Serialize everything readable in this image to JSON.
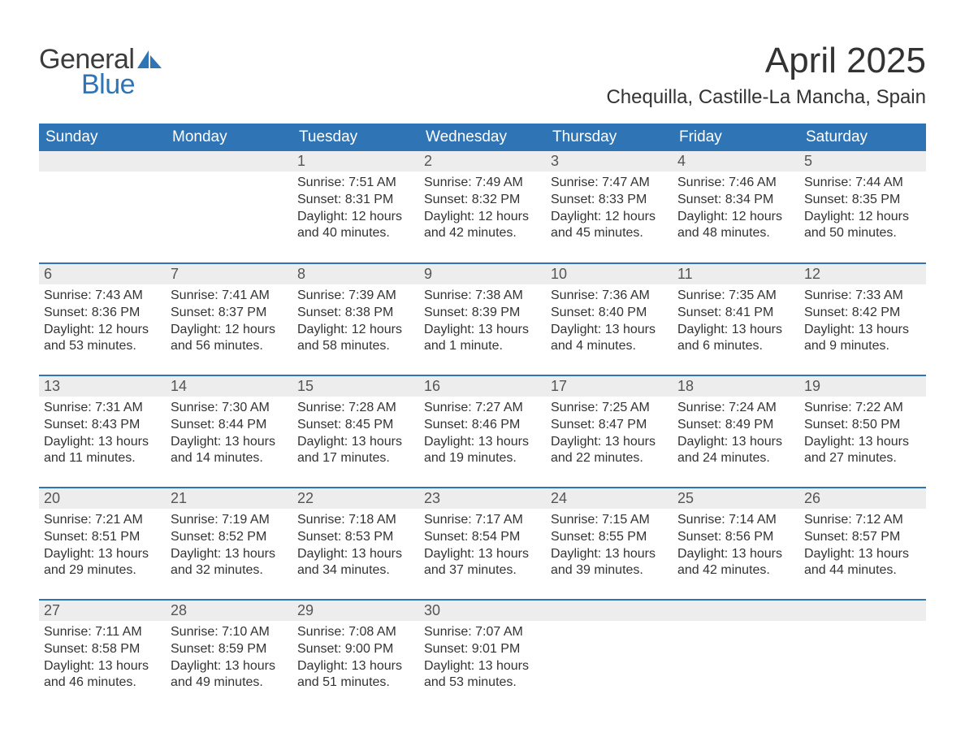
{
  "logo": {
    "text1": "General",
    "text2": "Blue"
  },
  "title": "April 2025",
  "location": "Chequilla, Castille-La Mancha, Spain",
  "colors": {
    "header_bg": "#2f75b5",
    "header_text": "#ffffff",
    "daynum_bg": "#ededed",
    "week_border": "#2f75b5",
    "body_text": "#333333",
    "logo_gray": "#3c3c3c",
    "logo_blue": "#2f75b5"
  },
  "fonts": {
    "title_pt": 44,
    "location_pt": 24,
    "header_pt": 19,
    "daynum_pt": 18,
    "body_pt": 16
  },
  "day_labels": [
    "Sunday",
    "Monday",
    "Tuesday",
    "Wednesday",
    "Thursday",
    "Friday",
    "Saturday"
  ],
  "weeks": [
    [
      {
        "num": "",
        "sunrise": "",
        "sunset": "",
        "daylight1": "",
        "daylight2": ""
      },
      {
        "num": "",
        "sunrise": "",
        "sunset": "",
        "daylight1": "",
        "daylight2": ""
      },
      {
        "num": "1",
        "sunrise": "Sunrise: 7:51 AM",
        "sunset": "Sunset: 8:31 PM",
        "daylight1": "Daylight: 12 hours",
        "daylight2": "and 40 minutes."
      },
      {
        "num": "2",
        "sunrise": "Sunrise: 7:49 AM",
        "sunset": "Sunset: 8:32 PM",
        "daylight1": "Daylight: 12 hours",
        "daylight2": "and 42 minutes."
      },
      {
        "num": "3",
        "sunrise": "Sunrise: 7:47 AM",
        "sunset": "Sunset: 8:33 PM",
        "daylight1": "Daylight: 12 hours",
        "daylight2": "and 45 minutes."
      },
      {
        "num": "4",
        "sunrise": "Sunrise: 7:46 AM",
        "sunset": "Sunset: 8:34 PM",
        "daylight1": "Daylight: 12 hours",
        "daylight2": "and 48 minutes."
      },
      {
        "num": "5",
        "sunrise": "Sunrise: 7:44 AM",
        "sunset": "Sunset: 8:35 PM",
        "daylight1": "Daylight: 12 hours",
        "daylight2": "and 50 minutes."
      }
    ],
    [
      {
        "num": "6",
        "sunrise": "Sunrise: 7:43 AM",
        "sunset": "Sunset: 8:36 PM",
        "daylight1": "Daylight: 12 hours",
        "daylight2": "and 53 minutes."
      },
      {
        "num": "7",
        "sunrise": "Sunrise: 7:41 AM",
        "sunset": "Sunset: 8:37 PM",
        "daylight1": "Daylight: 12 hours",
        "daylight2": "and 56 minutes."
      },
      {
        "num": "8",
        "sunrise": "Sunrise: 7:39 AM",
        "sunset": "Sunset: 8:38 PM",
        "daylight1": "Daylight: 12 hours",
        "daylight2": "and 58 minutes."
      },
      {
        "num": "9",
        "sunrise": "Sunrise: 7:38 AM",
        "sunset": "Sunset: 8:39 PM",
        "daylight1": "Daylight: 13 hours",
        "daylight2": "and 1 minute."
      },
      {
        "num": "10",
        "sunrise": "Sunrise: 7:36 AM",
        "sunset": "Sunset: 8:40 PM",
        "daylight1": "Daylight: 13 hours",
        "daylight2": "and 4 minutes."
      },
      {
        "num": "11",
        "sunrise": "Sunrise: 7:35 AM",
        "sunset": "Sunset: 8:41 PM",
        "daylight1": "Daylight: 13 hours",
        "daylight2": "and 6 minutes."
      },
      {
        "num": "12",
        "sunrise": "Sunrise: 7:33 AM",
        "sunset": "Sunset: 8:42 PM",
        "daylight1": "Daylight: 13 hours",
        "daylight2": "and 9 minutes."
      }
    ],
    [
      {
        "num": "13",
        "sunrise": "Sunrise: 7:31 AM",
        "sunset": "Sunset: 8:43 PM",
        "daylight1": "Daylight: 13 hours",
        "daylight2": "and 11 minutes."
      },
      {
        "num": "14",
        "sunrise": "Sunrise: 7:30 AM",
        "sunset": "Sunset: 8:44 PM",
        "daylight1": "Daylight: 13 hours",
        "daylight2": "and 14 minutes."
      },
      {
        "num": "15",
        "sunrise": "Sunrise: 7:28 AM",
        "sunset": "Sunset: 8:45 PM",
        "daylight1": "Daylight: 13 hours",
        "daylight2": "and 17 minutes."
      },
      {
        "num": "16",
        "sunrise": "Sunrise: 7:27 AM",
        "sunset": "Sunset: 8:46 PM",
        "daylight1": "Daylight: 13 hours",
        "daylight2": "and 19 minutes."
      },
      {
        "num": "17",
        "sunrise": "Sunrise: 7:25 AM",
        "sunset": "Sunset: 8:47 PM",
        "daylight1": "Daylight: 13 hours",
        "daylight2": "and 22 minutes."
      },
      {
        "num": "18",
        "sunrise": "Sunrise: 7:24 AM",
        "sunset": "Sunset: 8:49 PM",
        "daylight1": "Daylight: 13 hours",
        "daylight2": "and 24 minutes."
      },
      {
        "num": "19",
        "sunrise": "Sunrise: 7:22 AM",
        "sunset": "Sunset: 8:50 PM",
        "daylight1": "Daylight: 13 hours",
        "daylight2": "and 27 minutes."
      }
    ],
    [
      {
        "num": "20",
        "sunrise": "Sunrise: 7:21 AM",
        "sunset": "Sunset: 8:51 PM",
        "daylight1": "Daylight: 13 hours",
        "daylight2": "and 29 minutes."
      },
      {
        "num": "21",
        "sunrise": "Sunrise: 7:19 AM",
        "sunset": "Sunset: 8:52 PM",
        "daylight1": "Daylight: 13 hours",
        "daylight2": "and 32 minutes."
      },
      {
        "num": "22",
        "sunrise": "Sunrise: 7:18 AM",
        "sunset": "Sunset: 8:53 PM",
        "daylight1": "Daylight: 13 hours",
        "daylight2": "and 34 minutes."
      },
      {
        "num": "23",
        "sunrise": "Sunrise: 7:17 AM",
        "sunset": "Sunset: 8:54 PM",
        "daylight1": "Daylight: 13 hours",
        "daylight2": "and 37 minutes."
      },
      {
        "num": "24",
        "sunrise": "Sunrise: 7:15 AM",
        "sunset": "Sunset: 8:55 PM",
        "daylight1": "Daylight: 13 hours",
        "daylight2": "and 39 minutes."
      },
      {
        "num": "25",
        "sunrise": "Sunrise: 7:14 AM",
        "sunset": "Sunset: 8:56 PM",
        "daylight1": "Daylight: 13 hours",
        "daylight2": "and 42 minutes."
      },
      {
        "num": "26",
        "sunrise": "Sunrise: 7:12 AM",
        "sunset": "Sunset: 8:57 PM",
        "daylight1": "Daylight: 13 hours",
        "daylight2": "and 44 minutes."
      }
    ],
    [
      {
        "num": "27",
        "sunrise": "Sunrise: 7:11 AM",
        "sunset": "Sunset: 8:58 PM",
        "daylight1": "Daylight: 13 hours",
        "daylight2": "and 46 minutes."
      },
      {
        "num": "28",
        "sunrise": "Sunrise: 7:10 AM",
        "sunset": "Sunset: 8:59 PM",
        "daylight1": "Daylight: 13 hours",
        "daylight2": "and 49 minutes."
      },
      {
        "num": "29",
        "sunrise": "Sunrise: 7:08 AM",
        "sunset": "Sunset: 9:00 PM",
        "daylight1": "Daylight: 13 hours",
        "daylight2": "and 51 minutes."
      },
      {
        "num": "30",
        "sunrise": "Sunrise: 7:07 AM",
        "sunset": "Sunset: 9:01 PM",
        "daylight1": "Daylight: 13 hours",
        "daylight2": "and 53 minutes."
      },
      {
        "num": "",
        "sunrise": "",
        "sunset": "",
        "daylight1": "",
        "daylight2": ""
      },
      {
        "num": "",
        "sunrise": "",
        "sunset": "",
        "daylight1": "",
        "daylight2": ""
      },
      {
        "num": "",
        "sunrise": "",
        "sunset": "",
        "daylight1": "",
        "daylight2": ""
      }
    ]
  ]
}
